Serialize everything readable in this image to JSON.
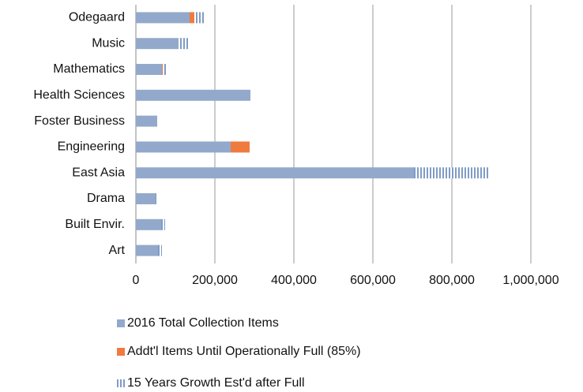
{
  "chart_data": {
    "type": "bar",
    "orientation": "horizontal",
    "stacked": true,
    "categories": [
      "Odegaard",
      "Music",
      "Mathematics",
      "Health Sciences",
      "Foster Business",
      "Engineering",
      "East Asia",
      "Drama",
      "Built Envir.",
      "Art"
    ],
    "series": [
      {
        "name": "2016 Total Collection Items",
        "color": "#92a9cb",
        "values": [
          136000,
          108000,
          66000,
          290000,
          54000,
          240000,
          704000,
          50000,
          64000,
          56000
        ]
      },
      {
        "name": "Addt'l Items Until Operationally Full (85%)",
        "color": "#f07b3f",
        "values": [
          12000,
          0,
          2000,
          0,
          0,
          48000,
          0,
          0,
          0,
          0
        ]
      },
      {
        "name": "15 Years Growth Est'd after Full",
        "color": "#7f9cc4",
        "pattern": "vertical-stripes",
        "values": [
          24000,
          24000,
          10000,
          0,
          0,
          0,
          192000,
          6000,
          10000,
          10000
        ]
      }
    ],
    "xlim": [
      0,
      1000000
    ],
    "xticks": [
      0,
      {
        "value": 200000,
        "label": "200,000"
      },
      {
        "value": 400000,
        "label": "400,000"
      },
      {
        "value": 600000,
        "label": "600,000"
      },
      {
        "value": 800000,
        "label": "800,000"
      },
      {
        "value": 1000000,
        "label": "1,000,000"
      }
    ],
    "grid": true,
    "legend": "bottom"
  }
}
